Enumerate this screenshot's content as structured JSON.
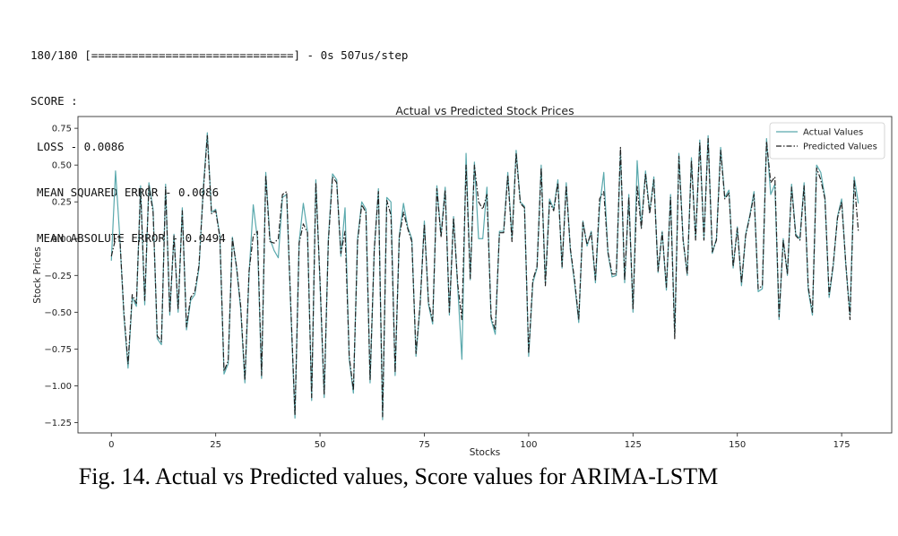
{
  "console": {
    "progress_line": "180/180 [==============================] - 0s 507us/step",
    "score_header": "SCORE :",
    "loss_line": "LOSS - 0.0086",
    "mse_line": "MEAN SQUARED ERROR - 0.0086",
    "mae_line": "MEAN ABSOLUTE ERROR - 0.0494"
  },
  "caption": "Fig. 14. Actual vs Predicted values, Score values for ARIMA-LSTM",
  "colors": {
    "actual": "#5aa9ad",
    "predicted": "#222222"
  },
  "chart_data": {
    "type": "line",
    "title": "Actual vs Predicted Stock Prices",
    "xlabel": "Stocks",
    "ylabel": "Stock Prices",
    "xlim": [
      -8,
      187
    ],
    "ylim": [
      -1.32,
      0.83
    ],
    "x_ticks": [
      0,
      25,
      50,
      75,
      100,
      125,
      150,
      175
    ],
    "y_ticks": [
      0.75,
      0.5,
      0.25,
      0.0,
      -0.25,
      -0.5,
      -0.75,
      -1.0,
      -1.25
    ],
    "y_tick_labels": [
      "0.75",
      "0.50",
      "0.25",
      "0.00",
      "−0.25",
      "−0.50",
      "−0.75",
      "−1.00",
      "−1.25"
    ],
    "grid": false,
    "legend_position": "top-right",
    "series": [
      {
        "name": "Actual Values",
        "style": "solid",
        "values": [
          -0.15,
          0.46,
          0.02,
          -0.52,
          -0.88,
          -0.4,
          -0.46,
          0.36,
          -0.45,
          0.38,
          0.2,
          -0.68,
          -0.72,
          0.37,
          -0.52,
          0.03,
          -0.5,
          0.21,
          -0.62,
          -0.42,
          -0.38,
          -0.2,
          0.33,
          0.72,
          0.18,
          0.2,
          0.02,
          -0.92,
          -0.85,
          0.01,
          -0.2,
          -0.48,
          -0.98,
          -0.24,
          0.23,
          0.0,
          -0.95,
          0.45,
          0.0,
          -0.08,
          -0.13,
          0.28,
          0.3,
          -0.48,
          -1.22,
          -0.02,
          0.24,
          0.05,
          -1.1,
          0.4,
          -0.3,
          -1.08,
          0.0,
          0.44,
          0.4,
          -0.12,
          0.21,
          -0.82,
          -1.05,
          0.0,
          0.25,
          0.2,
          -0.98,
          -0.08,
          0.34,
          -1.23,
          0.28,
          0.25,
          -0.93,
          0.02,
          0.24,
          0.08,
          0.0,
          -0.8,
          -0.45,
          0.12,
          -0.45,
          -0.58,
          0.36,
          0.02,
          0.35,
          -0.52,
          0.15,
          -0.33,
          -0.82,
          0.58,
          -0.28,
          0.52,
          0.0,
          0.0,
          0.35,
          -0.55,
          -0.65,
          0.05,
          0.05,
          0.45,
          0.0,
          0.6,
          0.25,
          0.22,
          -0.8,
          -0.3,
          -0.2,
          0.5,
          -0.3,
          0.27,
          0.2,
          0.4,
          -0.2,
          0.38,
          -0.08,
          -0.3,
          -0.57,
          0.12,
          -0.05,
          0.05,
          -0.3,
          0.22,
          0.45,
          -0.1,
          -0.26,
          -0.25,
          0.6,
          -0.3,
          0.3,
          -0.5,
          0.53,
          0.08,
          0.46,
          0.18,
          0.42,
          -0.23,
          0.05,
          -0.35,
          0.3,
          -0.65,
          0.58,
          0.0,
          -0.25,
          0.55,
          0.0,
          0.67,
          0.0,
          0.7,
          -0.1,
          0.0,
          0.62,
          0.28,
          0.33,
          -0.2,
          0.08,
          -0.32,
          0.03,
          0.16,
          0.32,
          -0.36,
          -0.34,
          0.68,
          0.3,
          0.37,
          -0.55,
          0.0,
          -0.25,
          0.37,
          0.03,
          0.0,
          0.38,
          -0.35,
          -0.52,
          0.5,
          0.45,
          0.28,
          -0.4,
          -0.18,
          0.15,
          0.27,
          -0.18,
          -0.52,
          0.42,
          0.24
        ]
      },
      {
        "name": "Predicted Values",
        "style": "dashdot",
        "values": [
          -0.12,
          0.0,
          0.02,
          -0.5,
          -0.85,
          -0.38,
          -0.44,
          0.34,
          -0.42,
          0.36,
          0.18,
          -0.66,
          -0.7,
          0.35,
          -0.5,
          0.02,
          -0.48,
          0.19,
          -0.6,
          -0.4,
          -0.36,
          -0.18,
          0.31,
          0.7,
          0.17,
          0.19,
          0.01,
          -0.9,
          -0.83,
          0.0,
          -0.19,
          -0.46,
          -0.96,
          -0.22,
          0.02,
          0.05,
          -0.93,
          0.43,
          -0.02,
          -0.03,
          0.0,
          0.3,
          0.32,
          -0.46,
          -1.2,
          -0.03,
          0.1,
          0.04,
          -1.08,
          0.38,
          -0.28,
          -1.06,
          -0.02,
          0.42,
          0.38,
          -0.1,
          0.05,
          -0.8,
          -1.03,
          -0.02,
          0.23,
          0.18,
          -0.96,
          -0.07,
          0.32,
          -1.21,
          0.26,
          0.16,
          -0.91,
          0.01,
          0.18,
          0.07,
          -0.02,
          -0.78,
          -0.44,
          0.1,
          -0.43,
          -0.56,
          0.34,
          0.01,
          0.33,
          -0.5,
          0.14,
          -0.31,
          -0.55,
          0.5,
          -0.27,
          0.5,
          0.25,
          0.2,
          0.3,
          -0.53,
          -0.62,
          0.04,
          0.04,
          0.43,
          -0.02,
          0.58,
          0.24,
          0.21,
          -0.78,
          -0.28,
          -0.19,
          0.48,
          -0.32,
          0.25,
          0.19,
          0.38,
          -0.19,
          0.36,
          -0.07,
          -0.28,
          -0.55,
          0.11,
          -0.04,
          0.04,
          -0.28,
          0.27,
          0.32,
          -0.09,
          -0.24,
          -0.24,
          0.62,
          -0.28,
          0.28,
          -0.48,
          0.36,
          0.07,
          0.44,
          0.17,
          0.4,
          -0.22,
          0.04,
          -0.33,
          0.28,
          -0.68,
          0.56,
          -0.01,
          -0.24,
          0.53,
          -0.01,
          0.65,
          -0.01,
          0.68,
          -0.09,
          -0.01,
          0.6,
          0.27,
          0.31,
          -0.19,
          0.07,
          -0.3,
          0.02,
          0.15,
          0.3,
          -0.34,
          -0.32,
          0.66,
          0.38,
          0.42,
          -0.53,
          -0.01,
          -0.24,
          0.35,
          0.02,
          -0.01,
          0.36,
          -0.33,
          -0.5,
          0.48,
          0.4,
          0.27,
          -0.38,
          -0.17,
          0.14,
          0.25,
          -0.17,
          -0.55,
          0.4,
          0.05
        ]
      }
    ]
  }
}
